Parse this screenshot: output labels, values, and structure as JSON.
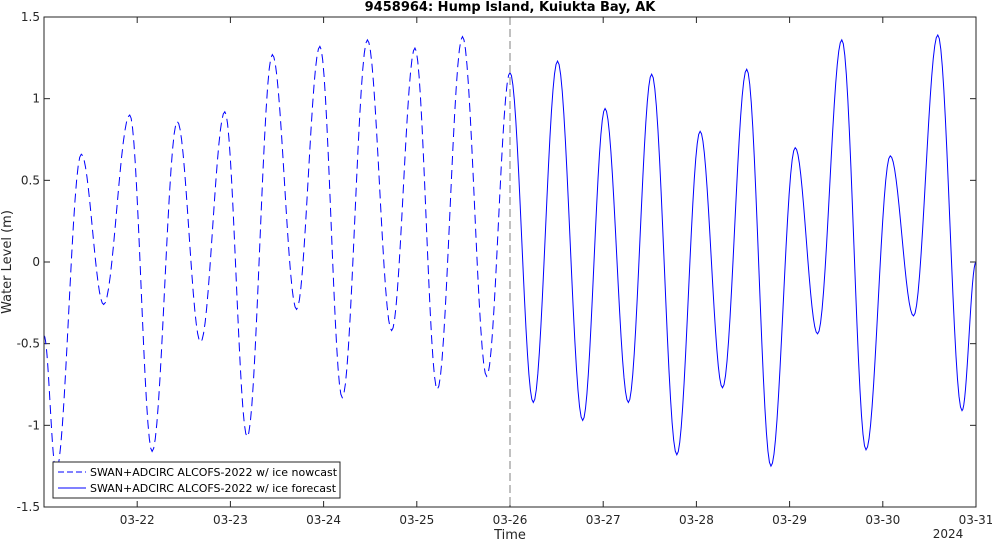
{
  "chart_data": {
    "type": "line",
    "title": "9458964: Hump Island, Kuiukta Bay, AK",
    "xlabel": "Time",
    "ylabel": "Water Level (m)",
    "year_label": "2024",
    "xlim": [
      "03-21",
      "03-31"
    ],
    "ylim": [
      -1.5,
      1.5
    ],
    "x_ticks": [
      "03-22",
      "03-23",
      "03-24",
      "03-25",
      "03-26",
      "03-27",
      "03-28",
      "03-29",
      "03-30",
      "03-31"
    ],
    "y_ticks": [
      -1.5,
      -1,
      -0.5,
      0,
      0.5,
      1,
      1.5
    ],
    "nowcast_end": "03-26",
    "line_color": "#0000ff",
    "legend_position": "bottom-left",
    "series": [
      {
        "name": "SWAN+ADCIRC ALCOFS-2022 w/ ice nowcast",
        "style": "dashed",
        "extrema": [
          {
            "x": 21.0,
            "y": -0.45
          },
          {
            "x": 21.13,
            "y": -1.28
          },
          {
            "x": 21.4,
            "y": 0.66
          },
          {
            "x": 21.64,
            "y": -0.26
          },
          {
            "x": 21.92,
            "y": 0.9
          },
          {
            "x": 22.16,
            "y": -1.16
          },
          {
            "x": 22.43,
            "y": 0.86
          },
          {
            "x": 22.68,
            "y": -0.49
          },
          {
            "x": 22.94,
            "y": 0.92
          },
          {
            "x": 23.18,
            "y": -1.07
          },
          {
            "x": 23.45,
            "y": 1.27
          },
          {
            "x": 23.71,
            "y": -0.29
          },
          {
            "x": 23.96,
            "y": 1.32
          },
          {
            "x": 24.2,
            "y": -0.83
          },
          {
            "x": 24.47,
            "y": 1.36
          },
          {
            "x": 24.73,
            "y": -0.42
          },
          {
            "x": 24.98,
            "y": 1.31
          },
          {
            "x": 25.22,
            "y": -0.78
          },
          {
            "x": 25.49,
            "y": 1.38
          },
          {
            "x": 25.75,
            "y": -0.7
          },
          {
            "x": 26.0,
            "y": 1.16
          }
        ]
      },
      {
        "name": "SWAN+ADCIRC ALCOFS-2022 w/ ice forecast",
        "style": "solid",
        "extrema": [
          {
            "x": 26.0,
            "y": 1.16
          },
          {
            "x": 26.25,
            "y": -0.86
          },
          {
            "x": 26.51,
            "y": 1.23
          },
          {
            "x": 26.78,
            "y": -0.97
          },
          {
            "x": 27.02,
            "y": 0.94
          },
          {
            "x": 27.27,
            "y": -0.86
          },
          {
            "x": 27.52,
            "y": 1.15
          },
          {
            "x": 27.79,
            "y": -1.18
          },
          {
            "x": 28.04,
            "y": 0.8
          },
          {
            "x": 28.28,
            "y": -0.77
          },
          {
            "x": 28.54,
            "y": 1.18
          },
          {
            "x": 28.8,
            "y": -1.25
          },
          {
            "x": 29.06,
            "y": 0.7
          },
          {
            "x": 29.3,
            "y": -0.44
          },
          {
            "x": 29.56,
            "y": 1.36
          },
          {
            "x": 29.82,
            "y": -1.15
          },
          {
            "x": 30.08,
            "y": 0.65
          },
          {
            "x": 30.33,
            "y": -0.33
          },
          {
            "x": 30.59,
            "y": 1.39
          },
          {
            "x": 30.85,
            "y": -0.91
          },
          {
            "x": 31.0,
            "y": 0.0
          }
        ]
      }
    ]
  }
}
